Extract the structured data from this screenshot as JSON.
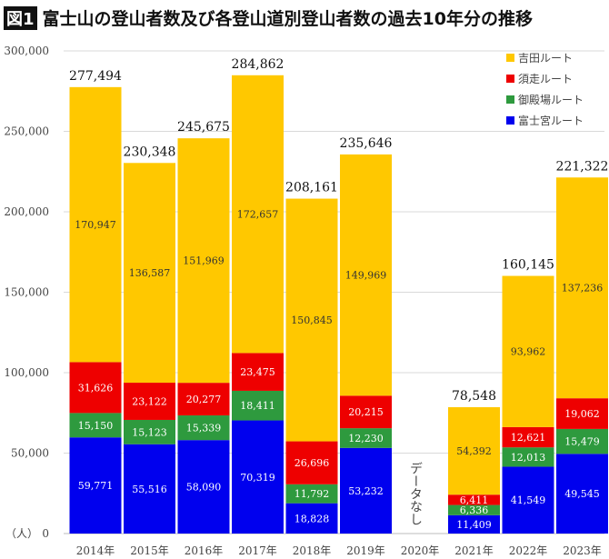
{
  "title": {
    "badge": "図1",
    "text": "富士山の登山者数及び各登山道別登山者数の過去10年分の推移"
  },
  "chart_data": {
    "type": "bar",
    "stacked": true,
    "categories": [
      "2014年",
      "2015年",
      "2016年",
      "2017年",
      "2018年",
      "2019年",
      "2020年",
      "2021年",
      "2022年",
      "2023年"
    ],
    "series": [
      {
        "name": "富士宮ルート",
        "color": "#0000ee",
        "values": [
          59771,
          55516,
          58090,
          70319,
          18828,
          53232,
          null,
          11409,
          41549,
          49545
        ]
      },
      {
        "name": "御殿場ルート",
        "color": "#2e9a3e",
        "values": [
          15150,
          15123,
          15339,
          18411,
          11792,
          12230,
          null,
          6336,
          12013,
          15479
        ]
      },
      {
        "name": "須走ルート",
        "color": "#ee0000",
        "values": [
          31626,
          23122,
          20277,
          23475,
          26696,
          20215,
          null,
          6411,
          12621,
          19062
        ]
      },
      {
        "name": "吉田ルート",
        "color": "#ffc800",
        "values": [
          170947,
          136587,
          151969,
          172657,
          150845,
          149969,
          null,
          54392,
          93962,
          137236
        ]
      }
    ],
    "totals": [
      "277,494",
      "230,348",
      "245,675",
      "284,862",
      "208,161",
      "235,646",
      null,
      "78,548",
      "160,145",
      "221,322"
    ],
    "no_data_label": "データなし",
    "ylim": [
      0,
      300000
    ],
    "yticks": [
      "0",
      "50,000",
      "100,000",
      "150,000",
      "200,000",
      "250,000",
      "300,000"
    ],
    "ylabel": "（人）",
    "grid": true,
    "legend": "top-right",
    "legend_order": [
      "吉田ルート",
      "須走ルート",
      "御殿場ルート",
      "富士宮ルート"
    ]
  }
}
